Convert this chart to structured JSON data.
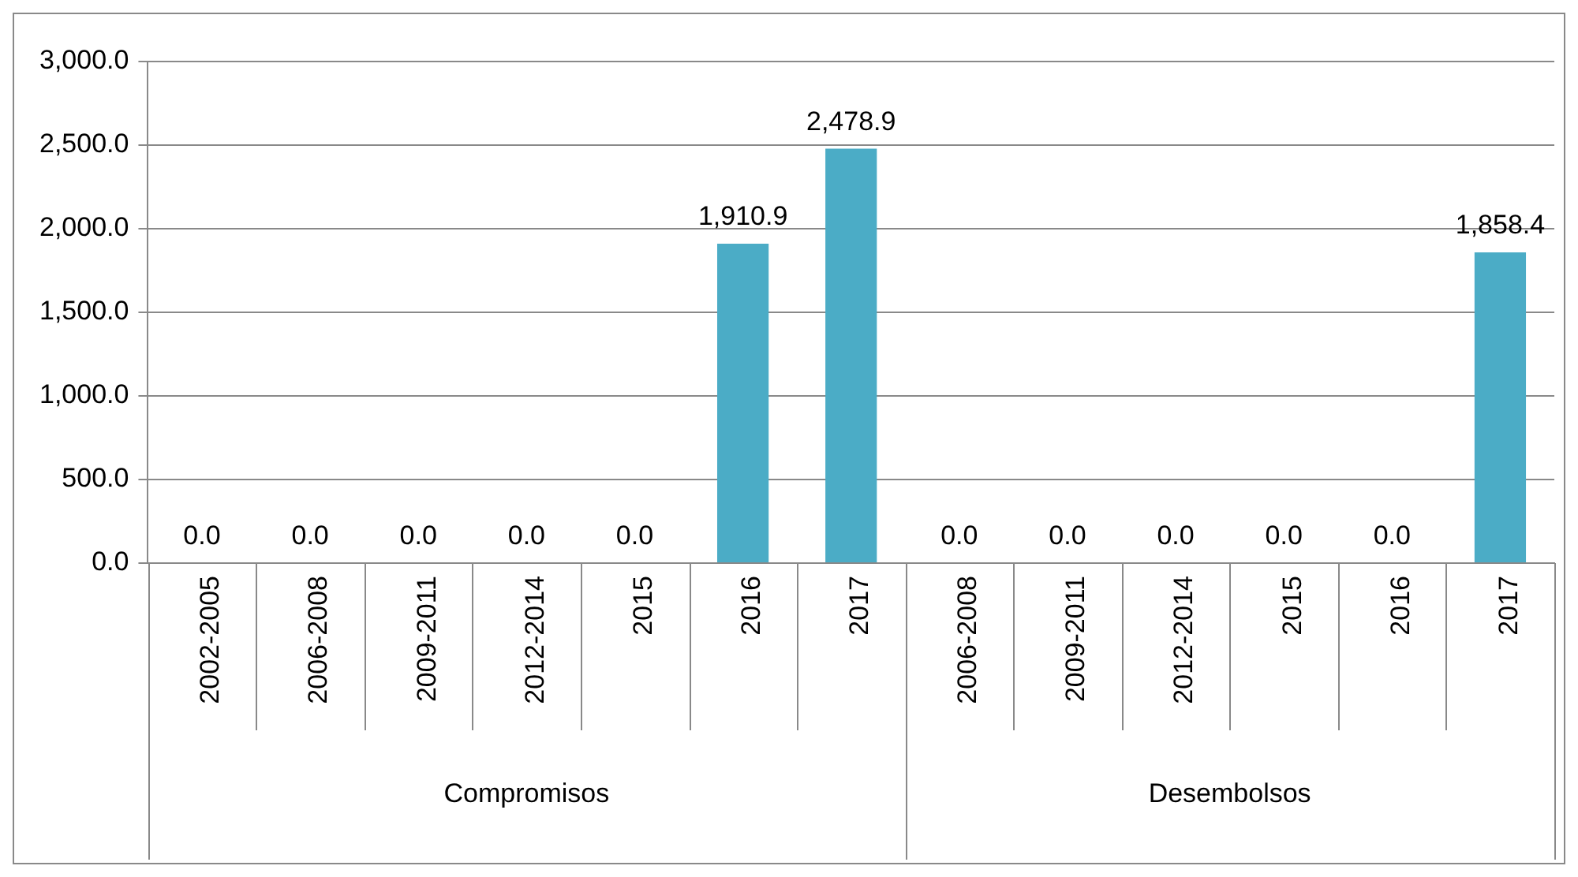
{
  "chart_data": {
    "type": "bar",
    "categories": [
      "2002-2005",
      "2006-2008",
      "2009-2011",
      "2012-2014",
      "2015",
      "2016",
      "2017",
      "2006-2008",
      "2009-2011",
      "2012-2014",
      "2015",
      "2016",
      "2017"
    ],
    "values": [
      0,
      0,
      0,
      0,
      0,
      1910.9,
      2478.9,
      0,
      0,
      0,
      0,
      0,
      1858.4
    ],
    "color": "#4bacc6",
    "ylim": [
      0,
      3000
    ],
    "yticks": [
      {
        "value": 0,
        "label": "0.0"
      },
      {
        "value": 500,
        "label": "500.0"
      },
      {
        "value": 1000,
        "label": "1,000.0"
      },
      {
        "value": 1500,
        "label": "1,500.0"
      },
      {
        "value": 2000,
        "label": "2,000.0"
      },
      {
        "value": 2500,
        "label": "2,500.0"
      },
      {
        "value": 3000,
        "label": "3,000.0"
      }
    ],
    "value_labels": [
      "0.0",
      "0.0",
      "0.0",
      "0.0",
      "0.0",
      "1,910.9",
      "2,478.9",
      "0.0",
      "0.0",
      "0.0",
      "0.0",
      "0.0",
      "1,858.4"
    ],
    "grid": "y",
    "legend": false,
    "annotations": [
      "Compromisos",
      "Desembolsos"
    ]
  }
}
